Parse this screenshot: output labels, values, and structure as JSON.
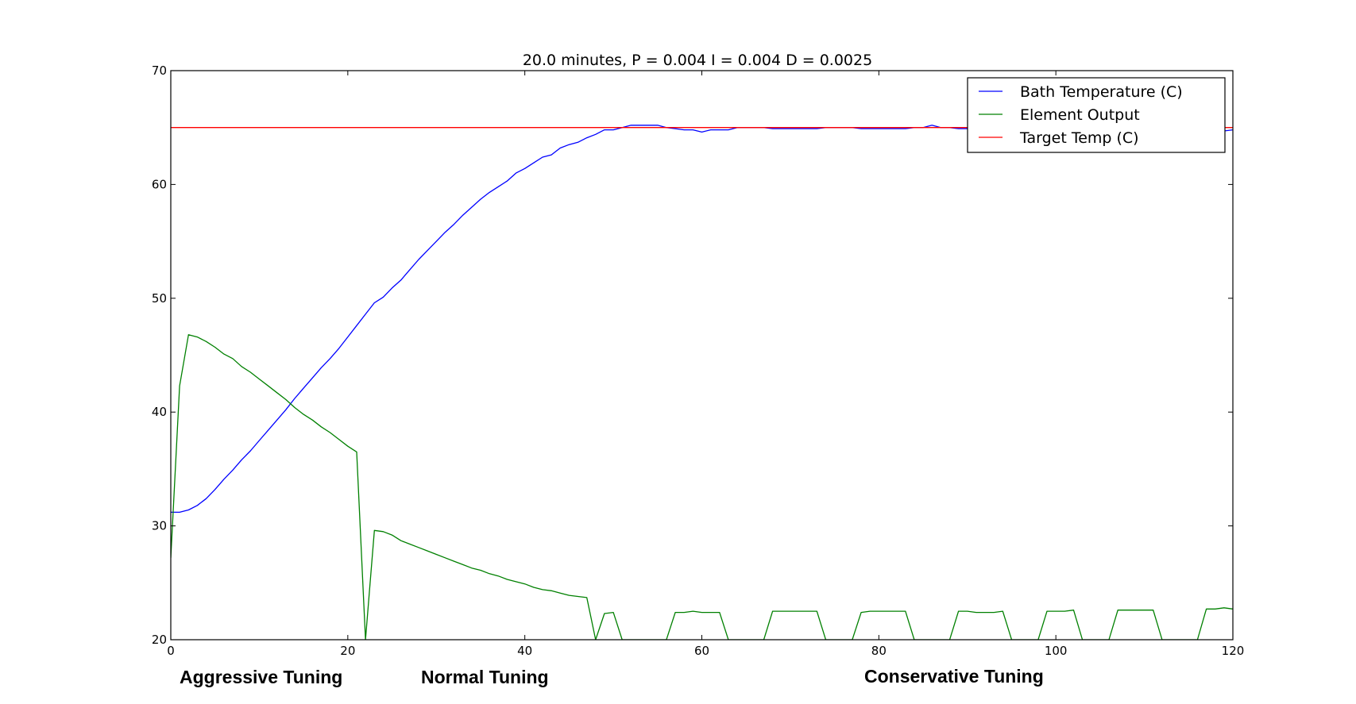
{
  "chart_data": {
    "type": "line",
    "title": "20.0 minutes, P = 0.004 I = 0.004 D = 0.0025",
    "xlabel": "",
    "ylabel": "",
    "xlim": [
      0,
      120
    ],
    "ylim": [
      20,
      70
    ],
    "x_ticks": [
      "0",
      "20",
      "40",
      "60",
      "80",
      "100",
      "120"
    ],
    "y_ticks": [
      "20",
      "30",
      "40",
      "50",
      "60",
      "70"
    ],
    "grid": false,
    "legend_position": "top-right",
    "series": [
      {
        "name": "Bath Temperature (C)",
        "color": "#0000ff",
        "points": [
          [
            0,
            31.2
          ],
          [
            1,
            31.2
          ],
          [
            2,
            31.4
          ],
          [
            3,
            31.8
          ],
          [
            4,
            32.4
          ],
          [
            5,
            33.2
          ],
          [
            6,
            34.1
          ],
          [
            7,
            34.9
          ],
          [
            8,
            35.8
          ],
          [
            9,
            36.6
          ],
          [
            10,
            37.5
          ],
          [
            11,
            38.4
          ],
          [
            12,
            39.3
          ],
          [
            13,
            40.2
          ],
          [
            14,
            41.2
          ],
          [
            15,
            42.1
          ],
          [
            16,
            43.0
          ],
          [
            17,
            43.9
          ],
          [
            18,
            44.7
          ],
          [
            19,
            45.6
          ],
          [
            20,
            46.6
          ],
          [
            21,
            47.6
          ],
          [
            22,
            48.6
          ],
          [
            23,
            49.6
          ],
          [
            24,
            50.1
          ],
          [
            25,
            50.9
          ],
          [
            26,
            51.6
          ],
          [
            27,
            52.5
          ],
          [
            28,
            53.4
          ],
          [
            29,
            54.2
          ],
          [
            30,
            55.0
          ],
          [
            31,
            55.8
          ],
          [
            32,
            56.5
          ],
          [
            33,
            57.3
          ],
          [
            34,
            58.0
          ],
          [
            35,
            58.7
          ],
          [
            36,
            59.3
          ],
          [
            37,
            59.8
          ],
          [
            38,
            60.3
          ],
          [
            39,
            61.0
          ],
          [
            40,
            61.4
          ],
          [
            41,
            61.9
          ],
          [
            42,
            62.4
          ],
          [
            43,
            62.6
          ],
          [
            44,
            63.2
          ],
          [
            45,
            63.5
          ],
          [
            46,
            63.7
          ],
          [
            47,
            64.1
          ],
          [
            48,
            64.4
          ],
          [
            49,
            64.8
          ],
          [
            50,
            64.8
          ],
          [
            51,
            65.0
          ],
          [
            52,
            65.2
          ],
          [
            53,
            65.2
          ],
          [
            54,
            65.2
          ],
          [
            55,
            65.2
          ],
          [
            56,
            65.0
          ],
          [
            57,
            64.9
          ],
          [
            58,
            64.8
          ],
          [
            59,
            64.8
          ],
          [
            60,
            64.6
          ],
          [
            61,
            64.8
          ],
          [
            62,
            64.8
          ],
          [
            63,
            64.8
          ],
          [
            64,
            65.0
          ],
          [
            65,
            65.0
          ],
          [
            66,
            65.0
          ],
          [
            67,
            65.0
          ],
          [
            68,
            64.9
          ],
          [
            69,
            64.9
          ],
          [
            70,
            64.9
          ],
          [
            71,
            64.9
          ],
          [
            72,
            64.9
          ],
          [
            73,
            64.9
          ],
          [
            74,
            65.0
          ],
          [
            75,
            65.0
          ],
          [
            76,
            65.0
          ],
          [
            77,
            65.0
          ],
          [
            78,
            64.9
          ],
          [
            79,
            64.9
          ],
          [
            80,
            64.9
          ],
          [
            81,
            64.9
          ],
          [
            82,
            64.9
          ],
          [
            83,
            64.9
          ],
          [
            84,
            65.0
          ],
          [
            85,
            65.0
          ],
          [
            86,
            65.2
          ],
          [
            87,
            65.0
          ],
          [
            88,
            65.0
          ],
          [
            89,
            64.9
          ],
          [
            90,
            64.9
          ],
          [
            91,
            64.9
          ],
          [
            92,
            64.9
          ],
          [
            93,
            64.9
          ],
          [
            94,
            64.9
          ],
          [
            95,
            65.0
          ],
          [
            96,
            65.0
          ],
          [
            97,
            65.0
          ],
          [
            98,
            64.9
          ],
          [
            99,
            64.9
          ],
          [
            100,
            64.9
          ],
          [
            101,
            64.9
          ],
          [
            102,
            64.9
          ],
          [
            103,
            64.9
          ],
          [
            104,
            65.0
          ],
          [
            105,
            65.0
          ],
          [
            106,
            65.0
          ],
          [
            107,
            65.0
          ],
          [
            108,
            64.9
          ],
          [
            109,
            64.9
          ],
          [
            110,
            64.9
          ],
          [
            111,
            64.9
          ],
          [
            112,
            64.9
          ],
          [
            113,
            64.9
          ],
          [
            114,
            65.0
          ],
          [
            115,
            65.0
          ],
          [
            116,
            65.0
          ],
          [
            117,
            64.9
          ],
          [
            118,
            64.8
          ],
          [
            119,
            64.7
          ],
          [
            120,
            64.8
          ]
        ]
      },
      {
        "name": "Element Output",
        "color": "#008000",
        "points": [
          [
            0,
            27.2
          ],
          [
            1,
            42.3
          ],
          [
            2,
            46.8
          ],
          [
            3,
            46.6
          ],
          [
            4,
            46.2
          ],
          [
            5,
            45.7
          ],
          [
            6,
            45.1
          ],
          [
            7,
            44.7
          ],
          [
            8,
            44.0
          ],
          [
            9,
            43.5
          ],
          [
            10,
            42.9
          ],
          [
            11,
            42.3
          ],
          [
            12,
            41.7
          ],
          [
            13,
            41.1
          ],
          [
            14,
            40.4
          ],
          [
            15,
            39.8
          ],
          [
            16,
            39.3
          ],
          [
            17,
            38.7
          ],
          [
            18,
            38.2
          ],
          [
            19,
            37.6
          ],
          [
            20,
            37.0
          ],
          [
            21,
            36.5
          ],
          [
            22,
            20.0
          ],
          [
            23,
            29.6
          ],
          [
            24,
            29.5
          ],
          [
            25,
            29.2
          ],
          [
            26,
            28.7
          ],
          [
            27,
            28.4
          ],
          [
            28,
            28.1
          ],
          [
            29,
            27.8
          ],
          [
            30,
            27.5
          ],
          [
            31,
            27.2
          ],
          [
            32,
            26.9
          ],
          [
            33,
            26.6
          ],
          [
            34,
            26.3
          ],
          [
            35,
            26.1
          ],
          [
            36,
            25.8
          ],
          [
            37,
            25.6
          ],
          [
            38,
            25.3
          ],
          [
            39,
            25.1
          ],
          [
            40,
            24.9
          ],
          [
            41,
            24.6
          ],
          [
            42,
            24.4
          ],
          [
            43,
            24.3
          ],
          [
            44,
            24.1
          ],
          [
            45,
            23.9
          ],
          [
            46,
            23.8
          ],
          [
            47,
            23.7
          ],
          [
            48,
            20.0
          ],
          [
            49,
            22.3
          ],
          [
            50,
            22.4
          ],
          [
            51,
            20.0
          ],
          [
            56,
            20.0
          ],
          [
            57,
            22.4
          ],
          [
            58,
            22.4
          ],
          [
            59,
            22.5
          ],
          [
            60,
            22.4
          ],
          [
            61,
            22.4
          ],
          [
            62,
            22.4
          ],
          [
            63,
            20.0
          ],
          [
            67,
            20.0
          ],
          [
            68,
            22.5
          ],
          [
            69,
            22.5
          ],
          [
            70,
            22.5
          ],
          [
            71,
            22.5
          ],
          [
            72,
            22.5
          ],
          [
            73,
            22.5
          ],
          [
            74,
            20.0
          ],
          [
            77,
            20.0
          ],
          [
            78,
            22.4
          ],
          [
            79,
            22.5
          ],
          [
            80,
            22.5
          ],
          [
            81,
            22.5
          ],
          [
            82,
            22.5
          ],
          [
            83,
            22.5
          ],
          [
            84,
            20.0
          ],
          [
            88,
            20.0
          ],
          [
            89,
            22.5
          ],
          [
            90,
            22.5
          ],
          [
            91,
            22.4
          ],
          [
            92,
            22.4
          ],
          [
            93,
            22.4
          ],
          [
            94,
            22.5
          ],
          [
            95,
            20.0
          ],
          [
            98,
            20.0
          ],
          [
            99,
            22.5
          ],
          [
            100,
            22.5
          ],
          [
            101,
            22.5
          ],
          [
            102,
            22.6
          ],
          [
            103,
            20.0
          ],
          [
            106,
            20.0
          ],
          [
            107,
            22.6
          ],
          [
            108,
            22.6
          ],
          [
            109,
            22.6
          ],
          [
            110,
            22.6
          ],
          [
            111,
            22.6
          ],
          [
            112,
            20.0
          ],
          [
            116,
            20.0
          ],
          [
            117,
            22.7
          ],
          [
            118,
            22.7
          ],
          [
            119,
            22.8
          ],
          [
            120,
            22.7
          ]
        ]
      },
      {
        "name": "Target Temp (C)",
        "color": "#ff0000",
        "points": [
          [
            0,
            65.0
          ],
          [
            120,
            65.0
          ]
        ]
      }
    ],
    "annotations": [
      "Aggressive Tuning",
      "Normal Tuning",
      "Conservative Tuning"
    ]
  }
}
